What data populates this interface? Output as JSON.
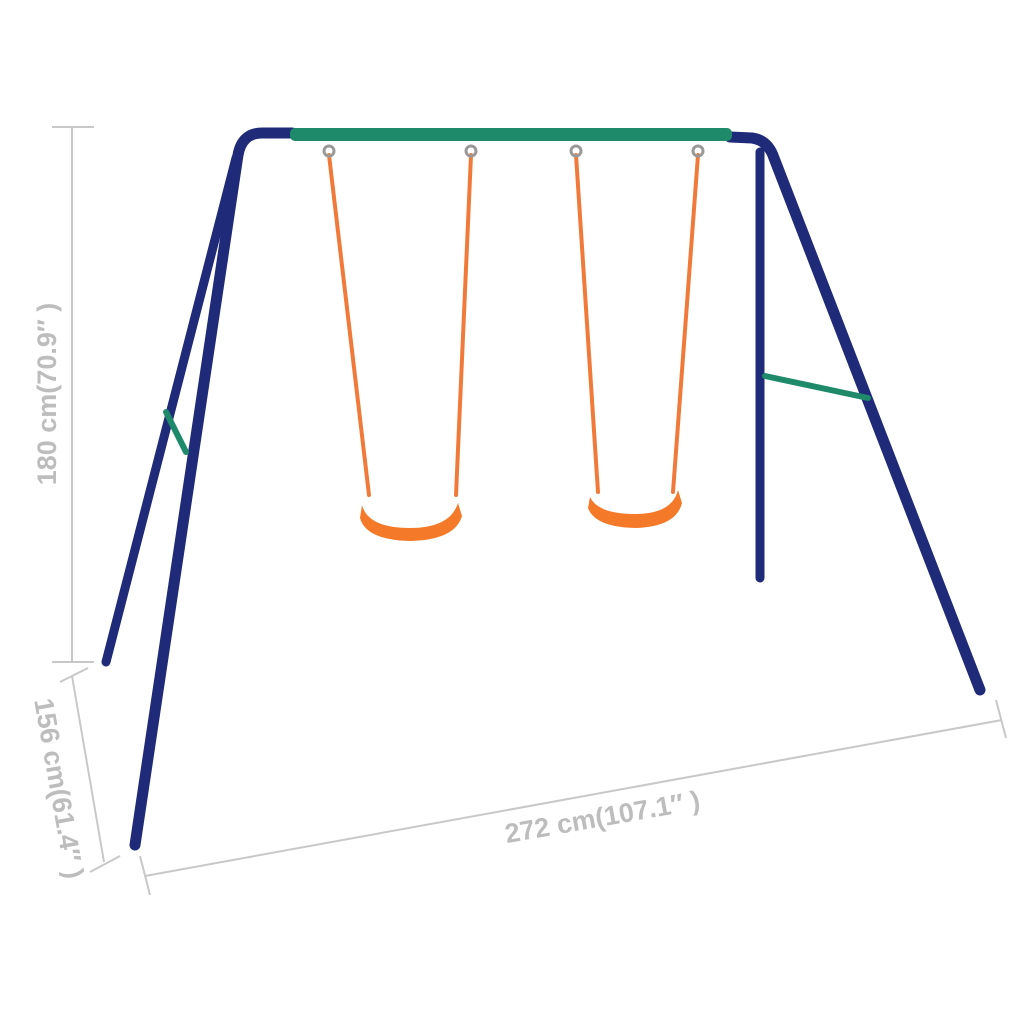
{
  "dimensions": {
    "height": "180 cm(70.9″ )",
    "depth": "156 cm(61.4″ )",
    "width": "272 cm(107.1″ )"
  },
  "colors": {
    "frame": "#1f2a78",
    "top_bar": "#1f8a6a",
    "rope": "#f07a3a",
    "seat": "#f47a2a",
    "dimension_line": "#c8c8c8"
  }
}
